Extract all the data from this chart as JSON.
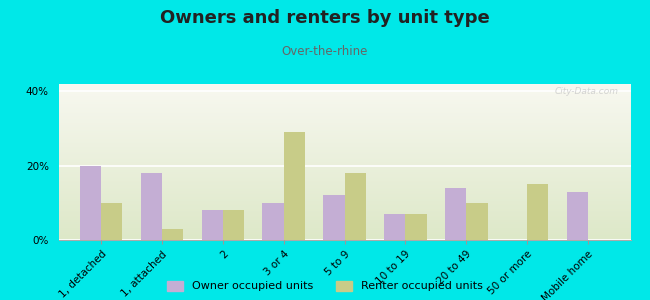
{
  "title": "Owners and renters by unit type",
  "subtitle": "Over-the-rhine",
  "categories": [
    "1, detached",
    "1, attached",
    "2",
    "3 or 4",
    "5 to 9",
    "10 to 19",
    "20 to 49",
    "50 or more",
    "Mobile home"
  ],
  "owner_values": [
    20,
    18,
    8,
    10,
    12,
    7,
    14,
    0,
    13
  ],
  "renter_values": [
    10,
    3,
    8,
    29,
    18,
    7,
    10,
    15,
    0
  ],
  "owner_color": "#c4aed4",
  "renter_color": "#c8cc88",
  "ylim": [
    0,
    42
  ],
  "yticks": [
    0,
    20,
    40
  ],
  "ytick_labels": [
    "0%",
    "20%",
    "40%"
  ],
  "bar_width": 0.35,
  "outer_bg": "#00e8e8",
  "legend_owner": "Owner occupied units",
  "legend_renter": "Renter occupied units",
  "watermark": "City-Data.com",
  "title_fontsize": 13,
  "subtitle_fontsize": 8.5,
  "tick_fontsize": 7.5
}
